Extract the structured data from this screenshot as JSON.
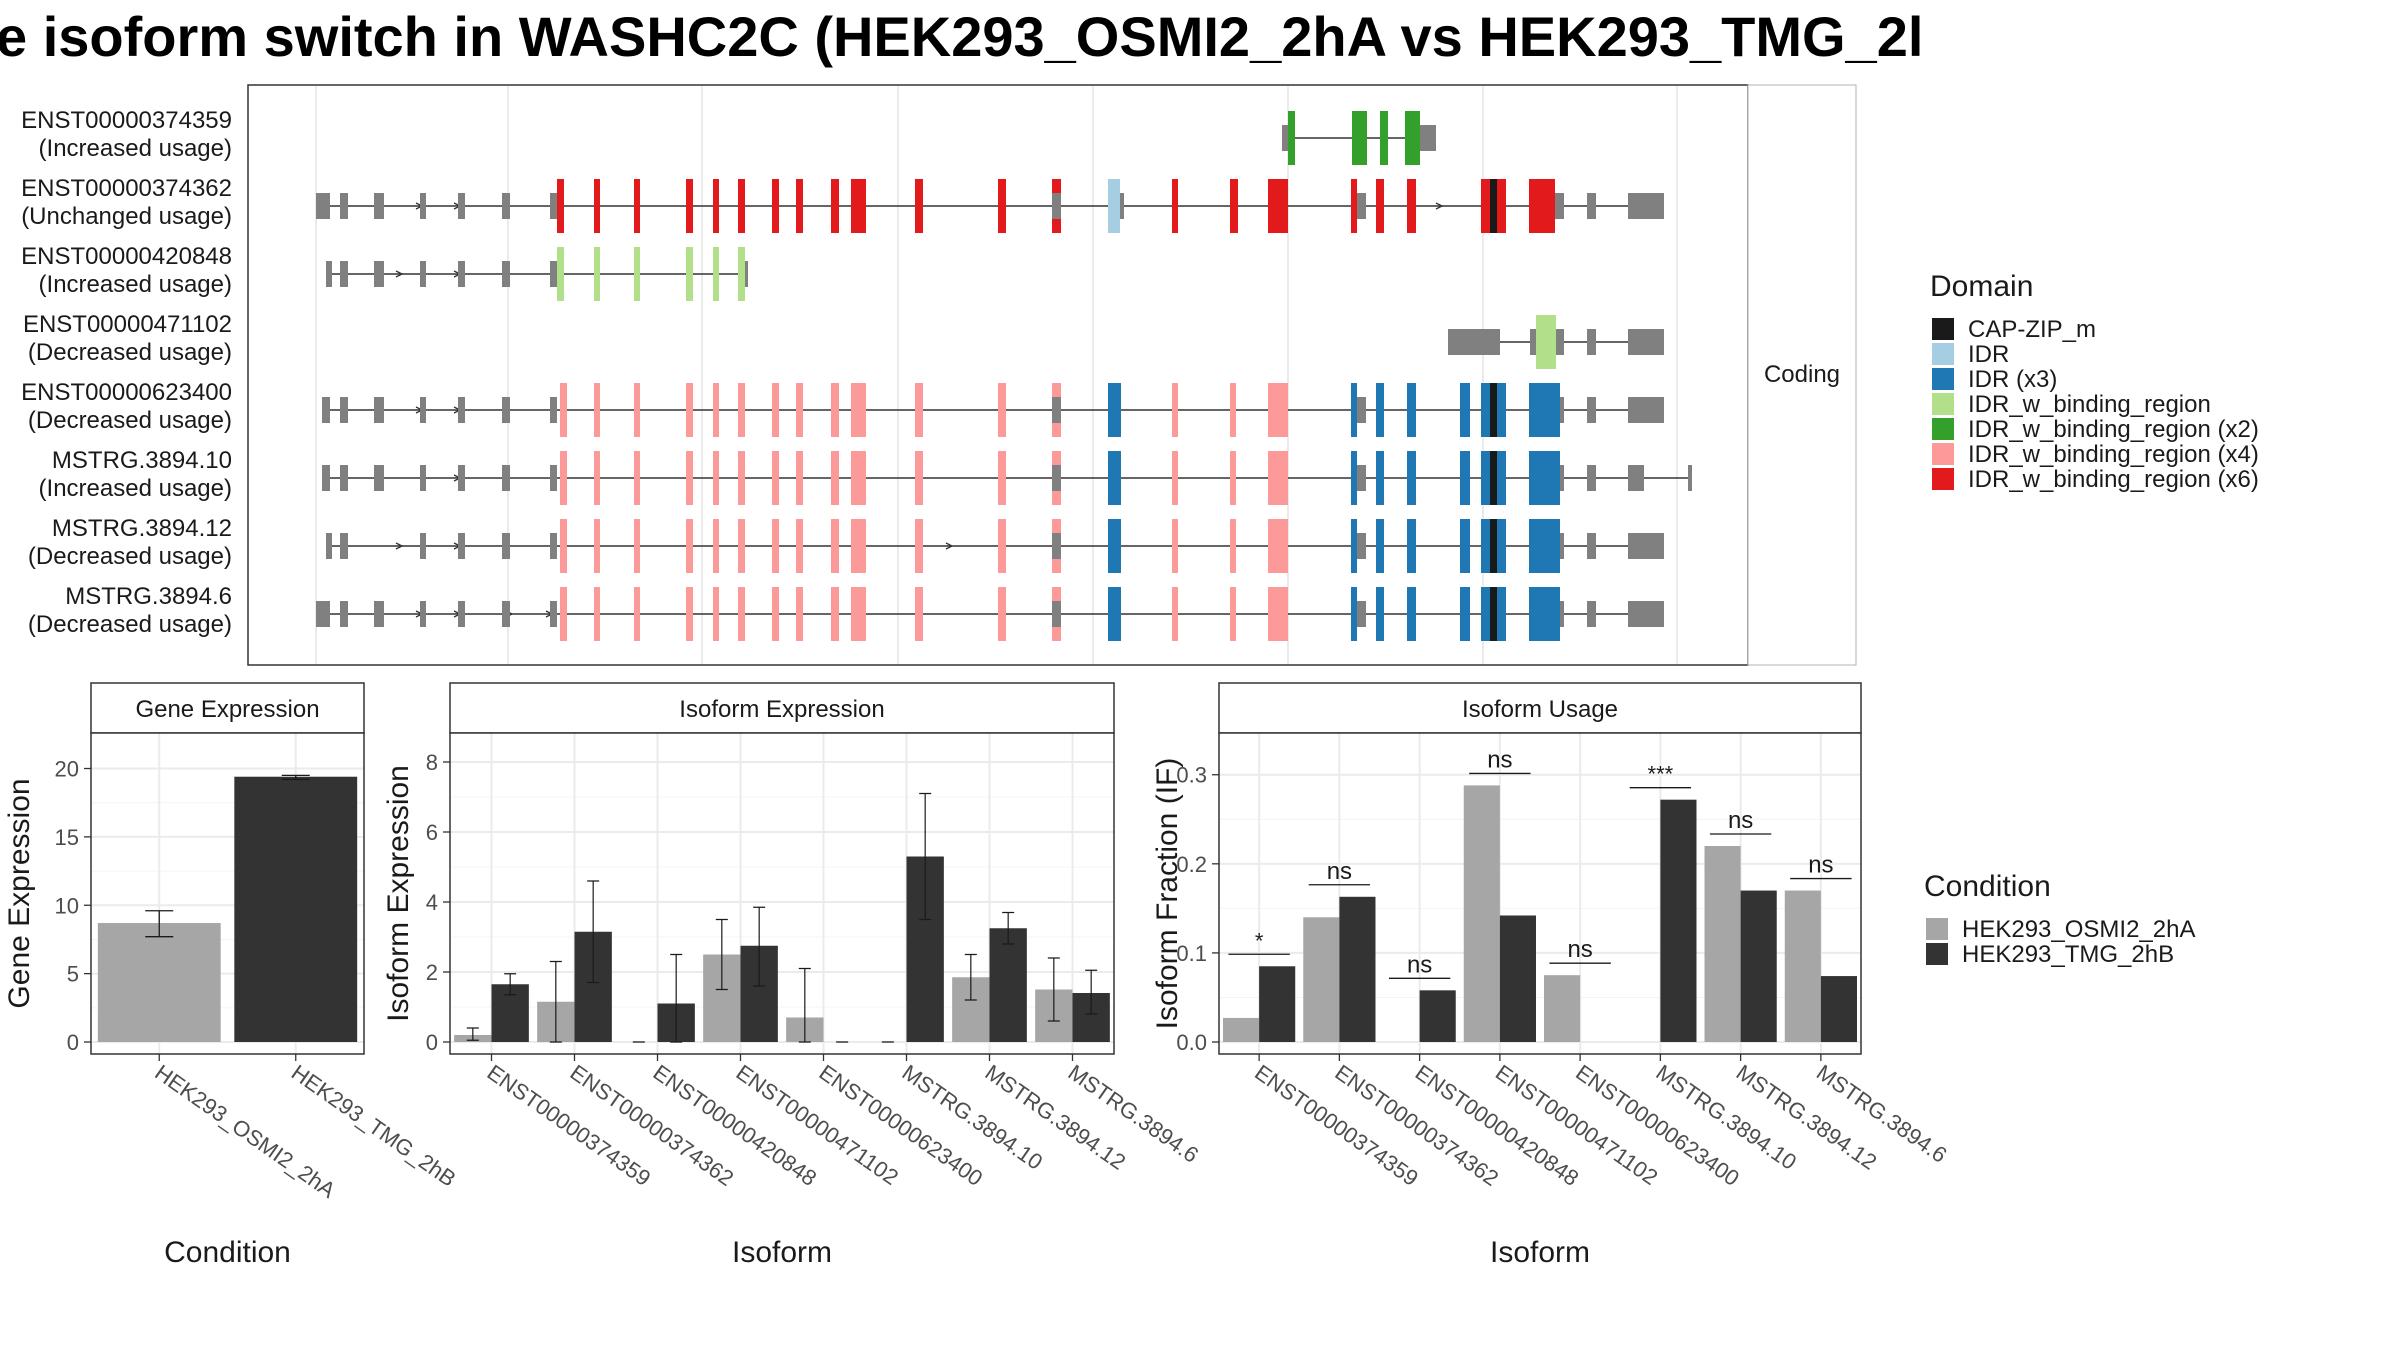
{
  "title": "e isoform switch in WASHC2C (HEK293_OSMI2_2hA vs HEK293_TMG_2l",
  "colors": {
    "utr": "#808080",
    "CAP-ZIP_m": "#1a1a1a",
    "IDR": "#a6cee3",
    "IDR (x3)": "#1f78b4",
    "IDR_w_binding_region": "#b2df8a",
    "IDR_w_binding_region (x2)": "#33a02c",
    "IDR_w_binding_region (x4)": "#fb9a99",
    "IDR_w_binding_region (x6)": "#e31a1c",
    "cond1": "#a6a6a6",
    "cond2": "#333333"
  },
  "structure": {
    "facet_label": "Coding",
    "isoforms": [
      {
        "id": "ENST00000374359",
        "usage": "(Increased usage)"
      },
      {
        "id": "ENST00000374362",
        "usage": "(Unchanged usage)"
      },
      {
        "id": "ENST00000420848",
        "usage": "(Increased usage)"
      },
      {
        "id": "ENST00000471102",
        "usage": "(Decreased usage)"
      },
      {
        "id": "ENST00000623400",
        "usage": "(Decreased usage)"
      },
      {
        "id": "MSTRG.3894.10",
        "usage": "(Increased usage)"
      },
      {
        "id": "MSTRG.3894.12",
        "usage": "(Decreased usage)"
      },
      {
        "id": "MSTRG.3894.6",
        "usage": "(Decreased usage)"
      }
    ]
  },
  "legend_domain": {
    "title": "Domain",
    "items": [
      "CAP-ZIP_m",
      "IDR",
      "IDR (x3)",
      "IDR_w_binding_region",
      "IDR_w_binding_region (x2)",
      "IDR_w_binding_region (x4)",
      "IDR_w_binding_region (x6)"
    ]
  },
  "legend_condition": {
    "title": "Condition",
    "items": [
      "HEK293_OSMI2_2hA",
      "HEK293_TMG_2hB"
    ]
  },
  "chart_data": [
    {
      "type": "bar",
      "title": "Gene Expression",
      "xlabel": "Condition",
      "ylabel": "Gene Expression",
      "ylim": [
        0,
        21.5
      ],
      "yticks": [
        0,
        5,
        10,
        15,
        20
      ],
      "categories": [
        "HEK293_OSMI2_2hA",
        "HEK293_TMG_2hB"
      ],
      "values": [
        8.7,
        19.4
      ],
      "errors": [
        [
          7.7,
          9.6
        ],
        [
          19.2,
          19.5
        ]
      ]
    },
    {
      "type": "bar",
      "title": "Isoform Expression",
      "xlabel": "Isoform",
      "ylabel": "Isoform Expression",
      "ylim": [
        0,
        8.4
      ],
      "yticks": [
        0,
        2,
        4,
        6,
        8
      ],
      "categories": [
        "ENST00000374359",
        "ENST00000374362",
        "ENST00000420848",
        "ENST00000471102",
        "ENST00000623400",
        "MSTRG.3894.10",
        "MSTRG.3894.12",
        "MSTRG.3894.6"
      ],
      "series": [
        {
          "name": "HEK293_OSMI2_2hA",
          "values": [
            0.2,
            1.15,
            0,
            2.5,
            0.7,
            0,
            1.85,
            1.5
          ],
          "errors": [
            [
              0.05,
              0.4
            ],
            [
              0,
              2.3
            ],
            [
              0,
              0
            ],
            [
              1.5,
              3.5
            ],
            [
              0,
              2.1
            ],
            [
              0,
              0
            ],
            [
              1.2,
              2.5
            ],
            [
              0.6,
              2.4
            ]
          ]
        },
        {
          "name": "HEK293_TMG_2hB",
          "values": [
            1.65,
            3.15,
            1.1,
            2.75,
            0,
            5.3,
            3.25,
            1.4
          ],
          "errors": [
            [
              1.35,
              1.95
            ],
            [
              1.7,
              4.6
            ],
            [
              0,
              2.5
            ],
            [
              1.6,
              3.85
            ],
            [
              0,
              0
            ],
            [
              3.5,
              7.1
            ],
            [
              2.8,
              3.7
            ],
            [
              0.8,
              2.05
            ]
          ]
        }
      ]
    },
    {
      "type": "bar",
      "title": "Isoform Usage",
      "xlabel": "Isoform",
      "ylabel": "Isoform Fraction (IF)",
      "ylim": [
        0,
        0.33
      ],
      "yticks": [
        0.0,
        0.1,
        0.2,
        0.3
      ],
      "categories": [
        "ENST00000374359",
        "ENST00000374362",
        "ENST00000420848",
        "ENST00000471102",
        "ENST00000623400",
        "MSTRG.3894.10",
        "MSTRG.3894.12",
        "MSTRG.3894.6"
      ],
      "series": [
        {
          "name": "HEK293_OSMI2_2hA",
          "values": [
            0.027,
            0.14,
            0,
            0.288,
            0.075,
            0,
            0.22,
            0.17
          ]
        },
        {
          "name": "HEK293_TMG_2hB",
          "values": [
            0.085,
            0.163,
            0.058,
            0.142,
            0,
            0.272,
            0.17,
            0.074
          ]
        }
      ],
      "significance": [
        "*",
        "ns",
        "ns",
        "ns",
        "ns",
        "***",
        "ns",
        "ns"
      ]
    }
  ]
}
